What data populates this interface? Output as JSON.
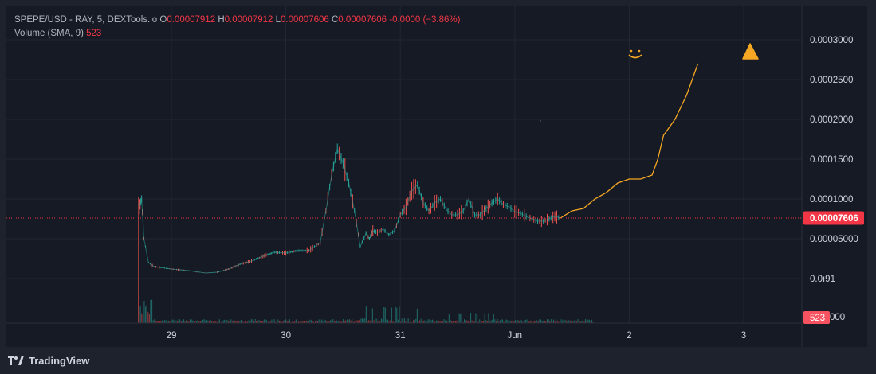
{
  "header": {
    "symbol": "SPEPE/USD",
    "source": "- RAY, 5, DEXTools.io",
    "o_label": "O",
    "o_value": "0.00007912",
    "h_label": "H",
    "h_value": "0.00007912",
    "l_label": "L",
    "l_value": "0.00007606",
    "c_label": "C",
    "c_value": "0.00007606",
    "change": "-0.0000 (−3.86%)",
    "volume_label": "Volume (SMA, 9)",
    "volume_value": "523"
  },
  "price_axis": {
    "ticks": [
      {
        "value": 0.0003,
        "label": "0.0003000"
      },
      {
        "value": 0.00025,
        "label": "0.0002500"
      },
      {
        "value": 0.0002,
        "label": "0.0002000"
      },
      {
        "value": 0.00015,
        "label": "0.0001500"
      },
      {
        "value": 0.0001,
        "label": "0.0001000"
      },
      {
        "value": 5e-05,
        "label": "0.00005000"
      },
      {
        "value": 0.0,
        "label": "0.0ı91"
      }
    ],
    "last_price_label": "0.00007606",
    "volume_badge": "523",
    "volume_tick_fragment": "000"
  },
  "time_axis": [
    "29",
    "30",
    "31",
    "Jun",
    "2",
    "3"
  ],
  "branding": {
    "name": "TradingView"
  },
  "colors": {
    "up": "#26a69a",
    "down": "#ef5350",
    "last_price": "#f23645",
    "projection": "#f5a623",
    "grid": "#232733",
    "background": "#161a25"
  },
  "chart_data": {
    "type": "line",
    "title": "SPEPE/USD - RAY, 5, DEXTools.io",
    "xlabel": "",
    "ylabel": "",
    "x_ticks": [
      "29",
      "30",
      "31",
      "Jun",
      "2",
      "3"
    ],
    "ylim": [
      0.0,
      0.00031
    ],
    "last_price": 7.606e-05,
    "series": [
      {
        "x": [
          0.0,
          0.02,
          0.04,
          0.06,
          0.1,
          0.15,
          0.3,
          0.45,
          0.55,
          0.6,
          0.7,
          0.8,
          0.9,
          1.0,
          1.1,
          1.2,
          1.3,
          1.4,
          1.5,
          1.55,
          1.6,
          1.65,
          1.7,
          1.75,
          1.8,
          1.85,
          1.9,
          1.95,
          2.0,
          2.03,
          2.06,
          2.1,
          2.15,
          2.2,
          2.25,
          2.3,
          2.35,
          2.4,
          2.45,
          2.5,
          2.55,
          2.6,
          2.65,
          2.7,
          2.75,
          2.8,
          2.85,
          2.9,
          2.95,
          3.0,
          3.05,
          3.1,
          3.15,
          3.2,
          3.25,
          3.3,
          3.35,
          3.4,
          3.45,
          3.5,
          3.55,
          3.6,
          3.65,
          3.7
        ],
        "values": [
          5e-05,
          9e-05,
          0.0001,
          5e-05,
          2e-05,
          1.5e-05,
          1.2e-05,
          1e-05,
          8e-06,
          7e-06,
          8e-06,
          1.2e-05,
          1.8e-05,
          2.2e-05,
          2.8e-05,
          3.3e-05,
          3.2e-05,
          3.5e-05,
          3.5e-05,
          4e-05,
          4.5e-05,
          8.5e-05,
          0.00013,
          0.000163,
          0.000145,
          0.00012,
          8.5e-05,
          4e-05,
          5.7e-05,
          5e-05,
          6e-05,
          5.8e-05,
          6.2e-05,
          5.5e-05,
          6e-05,
          8e-05,
          9e-05,
          0.00011,
          0.000118,
          9.5e-05,
          8.5e-05,
          9.5e-05,
          0.0001,
          8.7e-05,
          8e-05,
          8e-05,
          8.5e-05,
          0.0001,
          8e-05,
          8e-05,
          8.8e-05,
          9.5e-05,
          0.0001,
          9.3e-05,
          9e-05,
          8.4e-05,
          8.2e-05,
          7.8e-05,
          7.5e-05,
          7.2e-05,
          7.2e-05,
          7.5e-05,
          7.8e-05,
          7.6e-05
        ]
      },
      {
        "x": [
          3.7,
          3.8,
          3.9,
          4.0,
          4.1,
          4.2,
          4.3,
          4.4,
          4.5,
          4.55,
          4.6,
          4.65,
          4.7,
          4.8,
          4.9
        ],
        "values": [
          7.6e-05,
          8.5e-05,
          8.8e-05,
          0.0001,
          0.000108,
          0.00012,
          0.000125,
          0.000125,
          0.00013,
          0.00015,
          0.00018,
          0.00019,
          0.0002,
          0.00023,
          0.00027
        ]
      }
    ],
    "annotations": [
      "smiley face",
      "up arrow"
    ],
    "grid": true,
    "legend": "top-left"
  }
}
